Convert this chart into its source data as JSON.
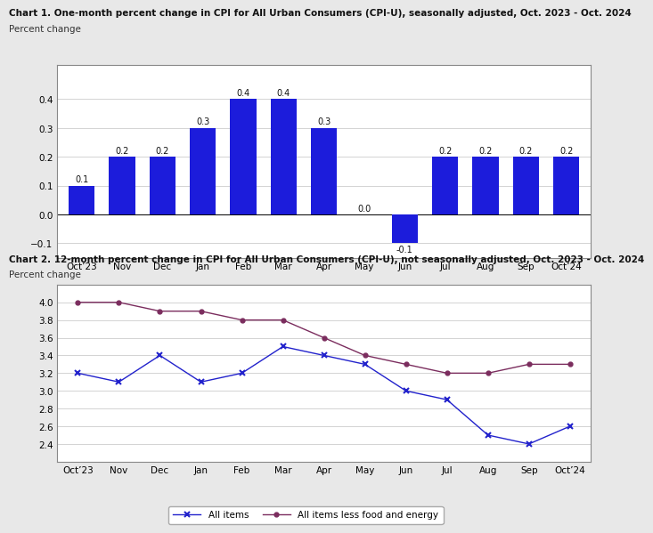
{
  "chart1": {
    "title": "Chart 1. One-month percent change in CPI for All Urban Consumers (CPI-U), seasonally adjusted, Oct. 2023 - Oct. 2024",
    "ylabel": "Percent change",
    "categories": [
      "Oct’23",
      "Nov",
      "Dec",
      "Jan",
      "Feb",
      "Mar",
      "Apr",
      "May",
      "Jun",
      "Jul",
      "Aug",
      "Sep",
      "Oct’24"
    ],
    "values": [
      0.1,
      0.2,
      0.2,
      0.3,
      0.4,
      0.4,
      0.3,
      0.0,
      -0.1,
      0.2,
      0.2,
      0.2,
      0.2
    ],
    "bar_color": "#1c1cdb",
    "ylim": [
      -0.15,
      0.52
    ],
    "yticks": [
      -0.1,
      0.0,
      0.1,
      0.2,
      0.3,
      0.4
    ]
  },
  "chart2": {
    "title": "Chart 2. 12-month percent change in CPI for All Urban Consumers (CPI-U), not seasonally adjusted, Oct. 2023 - Oct. 2024",
    "ylabel": "Percent change",
    "categories": [
      "Oct’23",
      "Nov",
      "Dec",
      "Jan",
      "Feb",
      "Mar",
      "Apr",
      "May",
      "Jun",
      "Jul",
      "Aug",
      "Sep",
      "Oct’24"
    ],
    "all_items": [
      3.2,
      3.1,
      3.4,
      3.1,
      3.2,
      3.5,
      3.4,
      3.3,
      3.0,
      2.9,
      2.5,
      2.4,
      2.6
    ],
    "core_items": [
      4.0,
      4.0,
      3.9,
      3.9,
      3.8,
      3.8,
      3.6,
      3.4,
      3.3,
      3.2,
      3.2,
      3.3,
      3.3
    ],
    "all_items_color": "#2222cc",
    "core_items_color": "#7b2d5e",
    "ylim": [
      2.2,
      4.2
    ],
    "yticks": [
      2.4,
      2.6,
      2.8,
      3.0,
      3.2,
      3.4,
      3.6,
      3.8,
      4.0
    ],
    "legend_all": "All items",
    "legend_core": "All items less food and energy"
  },
  "bg_color": "#e8e8e8",
  "plot_bg": "#ffffff",
  "title_fontsize": 7.5,
  "sublabel_fontsize": 7.5,
  "tick_fontsize": 7.5,
  "bar_label_fontsize": 7.0
}
